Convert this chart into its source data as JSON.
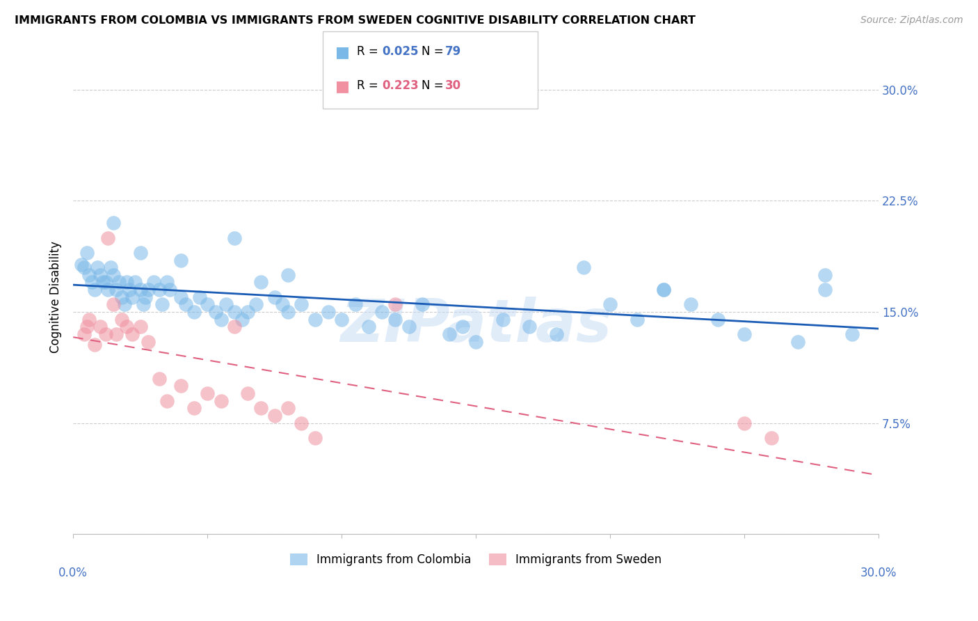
{
  "title": "IMMIGRANTS FROM COLOMBIA VS IMMIGRANTS FROM SWEDEN COGNITIVE DISABILITY CORRELATION CHART",
  "source": "Source: ZipAtlas.com",
  "ylabel": "Cognitive Disability",
  "yticks": [
    0.0,
    0.075,
    0.15,
    0.225,
    0.3
  ],
  "ytick_labels": [
    "",
    "7.5%",
    "15.0%",
    "22.5%",
    "30.0%"
  ],
  "xlim": [
    0.0,
    0.3
  ],
  "ylim": [
    0.0,
    0.32
  ],
  "watermark": "ZIPatlas",
  "colombia_R": "0.025",
  "colombia_N": "79",
  "sweden_R": "0.223",
  "sweden_N": "30",
  "colombia_color": "#7ab8e8",
  "sweden_color": "#f090a0",
  "colombia_line_color": "#1a5cb5",
  "sweden_line_color": "#e06080",
  "colombia_x": [
    0.003,
    0.004,
    0.005,
    0.006,
    0.007,
    0.008,
    0.009,
    0.01,
    0.011,
    0.012,
    0.013,
    0.014,
    0.015,
    0.016,
    0.017,
    0.018,
    0.019,
    0.02,
    0.021,
    0.022,
    0.023,
    0.025,
    0.026,
    0.027,
    0.028,
    0.03,
    0.032,
    0.033,
    0.035,
    0.036,
    0.04,
    0.042,
    0.045,
    0.047,
    0.05,
    0.053,
    0.055,
    0.057,
    0.06,
    0.063,
    0.065,
    0.068,
    0.07,
    0.075,
    0.078,
    0.08,
    0.085,
    0.09,
    0.095,
    0.1,
    0.105,
    0.11,
    0.115,
    0.12,
    0.125,
    0.13,
    0.14,
    0.145,
    0.15,
    0.16,
    0.17,
    0.18,
    0.19,
    0.2,
    0.21,
    0.22,
    0.23,
    0.24,
    0.25,
    0.27,
    0.015,
    0.025,
    0.04,
    0.06,
    0.08,
    0.22,
    0.28,
    0.29,
    0.28
  ],
  "colombia_y": [
    0.182,
    0.18,
    0.19,
    0.175,
    0.17,
    0.165,
    0.18,
    0.175,
    0.17,
    0.17,
    0.165,
    0.18,
    0.175,
    0.165,
    0.17,
    0.16,
    0.155,
    0.17,
    0.165,
    0.16,
    0.17,
    0.165,
    0.155,
    0.16,
    0.165,
    0.17,
    0.165,
    0.155,
    0.17,
    0.165,
    0.16,
    0.155,
    0.15,
    0.16,
    0.155,
    0.15,
    0.145,
    0.155,
    0.15,
    0.145,
    0.15,
    0.155,
    0.17,
    0.16,
    0.155,
    0.15,
    0.155,
    0.145,
    0.15,
    0.145,
    0.155,
    0.14,
    0.15,
    0.145,
    0.14,
    0.155,
    0.135,
    0.14,
    0.13,
    0.145,
    0.14,
    0.135,
    0.18,
    0.155,
    0.145,
    0.165,
    0.155,
    0.145,
    0.135,
    0.13,
    0.21,
    0.19,
    0.185,
    0.2,
    0.175,
    0.165,
    0.165,
    0.135,
    0.175
  ],
  "sweden_x": [
    0.004,
    0.005,
    0.006,
    0.008,
    0.01,
    0.012,
    0.013,
    0.015,
    0.016,
    0.018,
    0.02,
    0.022,
    0.025,
    0.028,
    0.032,
    0.035,
    0.04,
    0.045,
    0.05,
    0.055,
    0.06,
    0.065,
    0.07,
    0.075,
    0.08,
    0.085,
    0.09,
    0.12,
    0.25,
    0.26
  ],
  "sweden_y": [
    0.135,
    0.14,
    0.145,
    0.128,
    0.14,
    0.135,
    0.2,
    0.155,
    0.135,
    0.145,
    0.14,
    0.135,
    0.14,
    0.13,
    0.105,
    0.09,
    0.1,
    0.085,
    0.095,
    0.09,
    0.14,
    0.095,
    0.085,
    0.08,
    0.085,
    0.075,
    0.065,
    0.155,
    0.075,
    0.065
  ]
}
